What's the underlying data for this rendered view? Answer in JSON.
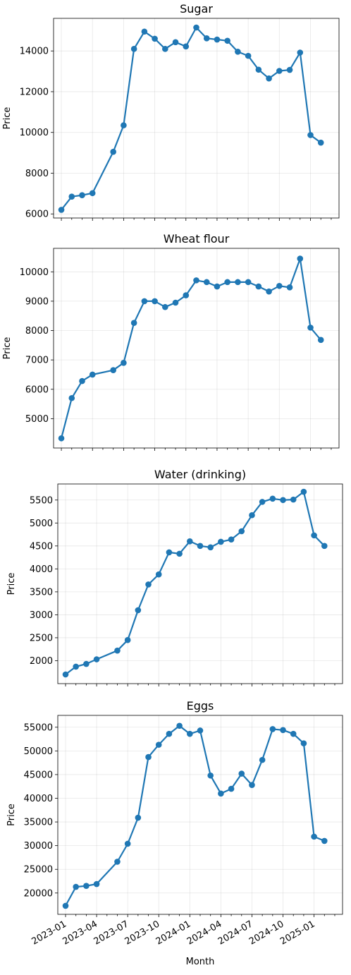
{
  "colors": {
    "series": "#1f77b4"
  },
  "shared_x": {
    "label": "Month",
    "tick_labels": [
      "2023-01",
      "2023-04",
      "2023-07",
      "2023-10",
      "2024-01",
      "2024-04",
      "2024-07",
      "2024-10",
      "2025-01"
    ]
  },
  "chart_data": [
    {
      "type": "line",
      "title": "Sugar",
      "xlabel": "",
      "ylabel": "Price",
      "grid": true,
      "ylim": [
        5800,
        15600
      ],
      "y_ticks": [
        6000,
        8000,
        10000,
        12000,
        14000
      ],
      "x": [
        "2023-01",
        "2023-02",
        "2023-03",
        "2023-04",
        "2023-06",
        "2023-07",
        "2023-08",
        "2023-09",
        "2023-10",
        "2023-11",
        "2023-12",
        "2024-01",
        "2024-02",
        "2024-03",
        "2024-04",
        "2024-05",
        "2024-06",
        "2024-07",
        "2024-08",
        "2024-09",
        "2024-10",
        "2024-11",
        "2024-12",
        "2025-01",
        "2025-02"
      ],
      "series": [
        {
          "values": [
            6200,
            6850,
            6920,
            7020,
            9050,
            10350,
            14100,
            14950,
            14600,
            14100,
            14430,
            14220,
            15150,
            14620,
            14560,
            14500,
            13960,
            13760,
            13080,
            12650,
            13020,
            13070,
            13920,
            9870,
            9500
          ]
        }
      ]
    },
    {
      "type": "line",
      "title": "Wheat flour",
      "xlabel": "",
      "ylabel": "Price",
      "grid": true,
      "ylim": [
        4000,
        10800
      ],
      "y_ticks": [
        5000,
        6000,
        7000,
        8000,
        9000,
        10000
      ],
      "x": [
        "2023-01",
        "2023-02",
        "2023-03",
        "2023-04",
        "2023-06",
        "2023-07",
        "2023-08",
        "2023-09",
        "2023-10",
        "2023-11",
        "2023-12",
        "2024-01",
        "2024-02",
        "2024-03",
        "2024-04",
        "2024-05",
        "2024-06",
        "2024-07",
        "2024-08",
        "2024-09",
        "2024-10",
        "2024-11",
        "2024-12",
        "2025-01",
        "2025-02"
      ],
      "series": [
        {
          "values": [
            4330,
            5700,
            6280,
            6500,
            6650,
            6900,
            8260,
            9000,
            9000,
            8800,
            8950,
            9200,
            9710,
            9650,
            9500,
            9650,
            9650,
            9650,
            9500,
            9330,
            9520,
            9470,
            10450,
            8100,
            7680
          ]
        }
      ]
    },
    {
      "type": "line",
      "title": "Water (drinking)",
      "xlabel": "",
      "ylabel": "Price",
      "grid": true,
      "ylim": [
        1500,
        5850
      ],
      "y_ticks": [
        2000,
        2500,
        3000,
        3500,
        4000,
        4500,
        5000,
        5500
      ],
      "x": [
        "2023-01",
        "2023-02",
        "2023-03",
        "2023-04",
        "2023-06",
        "2023-07",
        "2023-08",
        "2023-09",
        "2023-10",
        "2023-11",
        "2023-12",
        "2024-01",
        "2024-02",
        "2024-03",
        "2024-04",
        "2024-05",
        "2024-06",
        "2024-07",
        "2024-08",
        "2024-09",
        "2024-10",
        "2024-11",
        "2024-12",
        "2025-01",
        "2025-02"
      ],
      "series": [
        {
          "values": [
            1700,
            1870,
            1930,
            2030,
            2220,
            2450,
            3100,
            3660,
            3880,
            4360,
            4330,
            4600,
            4500,
            4470,
            4590,
            4640,
            4820,
            5170,
            5460,
            5530,
            5500,
            5510,
            5680,
            4730,
            4500
          ]
        }
      ]
    },
    {
      "type": "line",
      "title": "Eggs",
      "xlabel": "Month",
      "ylabel": "Price",
      "grid": true,
      "ylim": [
        15500,
        57500
      ],
      "y_ticks": [
        20000,
        25000,
        30000,
        35000,
        40000,
        45000,
        50000,
        55000
      ],
      "x": [
        "2023-01",
        "2023-02",
        "2023-03",
        "2023-04",
        "2023-06",
        "2023-07",
        "2023-08",
        "2023-09",
        "2023-10",
        "2023-11",
        "2023-12",
        "2024-01",
        "2024-02",
        "2024-03",
        "2024-04",
        "2024-05",
        "2024-06",
        "2024-07",
        "2024-08",
        "2024-09",
        "2024-10",
        "2024-11",
        "2024-12",
        "2025-01",
        "2025-02"
      ],
      "series": [
        {
          "values": [
            17300,
            21300,
            21500,
            21900,
            26600,
            30400,
            35900,
            48700,
            51300,
            53600,
            55300,
            53600,
            54300,
            44800,
            41000,
            42000,
            45200,
            42800,
            48100,
            54600,
            54400,
            53600,
            51600,
            31900,
            31000
          ]
        }
      ]
    }
  ]
}
